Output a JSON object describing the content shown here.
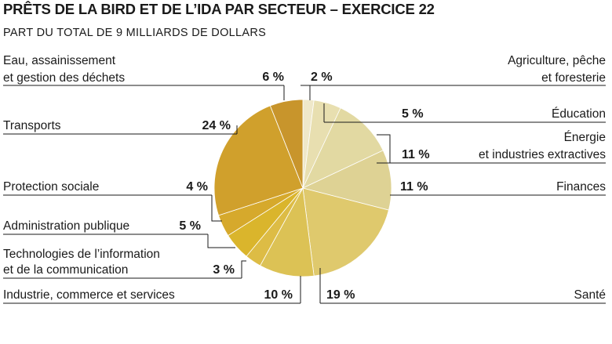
{
  "title": "PRÊTS DE LA BIRD ET DE L’IDA PAR SECTEUR – EXERCICE 22",
  "subtitle": "PART DU TOTAL DE 9 MILLIARDS DE DOLLARS",
  "chart_data": {
    "type": "pie",
    "title": "PRÊTS DE LA BIRD ET DE L’IDA PAR SECTEUR – EXERCICE 22",
    "subtitle": "PART DU TOTAL DE 9 MILLIARDS DE DOLLARS",
    "unit": "%",
    "start": "12 o'clock, clockwise",
    "slices": [
      {
        "key": "agri",
        "name": "Agriculture, pêche et foresterie",
        "lines": [
          "Agriculture, pêche",
          "et foresterie"
        ],
        "value": 2,
        "display": "2 %",
        "color": "#efe8c9"
      },
      {
        "key": "edu",
        "name": "Éducation",
        "lines": [
          "Éducation"
        ],
        "value": 5,
        "display": "5 %",
        "color": "#e8dfb0"
      },
      {
        "key": "energie",
        "name": "Énergie et industries extractives",
        "lines": [
          "Énergie",
          "et industries extractives"
        ],
        "value": 11,
        "display": "11 %",
        "color": "#e2d9a2"
      },
      {
        "key": "finances",
        "name": "Finances",
        "lines": [
          "Finances"
        ],
        "value": 11,
        "display": "11 %",
        "color": "#ded294"
      },
      {
        "key": "sante",
        "name": "Santé",
        "lines": [
          "Santé"
        ],
        "value": 19,
        "display": "19 %",
        "color": "#dfc96d"
      },
      {
        "key": "industrie",
        "name": "Industrie, commerce et services",
        "lines": [
          "Industrie, commerce et services"
        ],
        "value": 10,
        "display": "10 %",
        "color": "#dcc255"
      },
      {
        "key": "tic",
        "name": "Technologies de l’information et de la communication",
        "lines": [
          "Technologies de l’information",
          "et de la communication"
        ],
        "value": 3,
        "display": "3 %",
        "color": "#ddbc45"
      },
      {
        "key": "admin",
        "name": "Administration publique",
        "lines": [
          "Administration publique"
        ],
        "value": 5,
        "display": "5 %",
        "color": "#dab52c"
      },
      {
        "key": "social",
        "name": "Protection sociale",
        "lines": [
          "Protection sociale"
        ],
        "value": 4,
        "display": "4 %",
        "color": "#d6a92c"
      },
      {
        "key": "transport",
        "name": "Transports",
        "lines": [
          "Transports"
        ],
        "value": 24,
        "display": "24 %",
        "color": "#d0a02c"
      },
      {
        "key": "eau",
        "name": "Eau, assainissement et gestion des déchets",
        "lines": [
          "Eau, assainissement",
          "et gestion des déchets"
        ],
        "value": 6,
        "display": "6 %",
        "color": "#c8952c"
      }
    ]
  }
}
